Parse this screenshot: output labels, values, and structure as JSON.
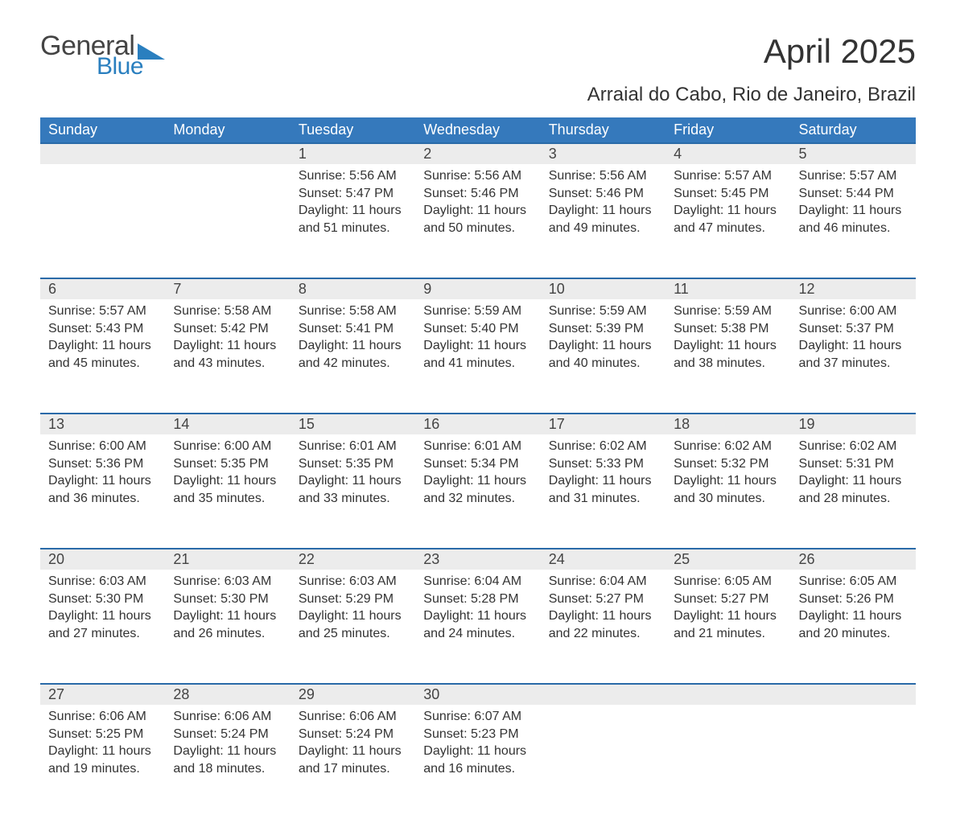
{
  "brand": {
    "line1": "General",
    "line2": "Blue",
    "triangle_color": "#2a7fbf",
    "text1_color": "#444444",
    "text2_color": "#2a7fbf"
  },
  "title": "April 2025",
  "subtitle": "Arraial do Cabo, Rio de Janeiro, Brazil",
  "colors": {
    "header_bg": "#3579bc",
    "header_text": "#ffffff",
    "daynum_bg": "#ececec",
    "row_border": "#2a6aa8",
    "body_text": "#333333",
    "page_bg": "#ffffff"
  },
  "fonts": {
    "title_size": 42,
    "subtitle_size": 24,
    "header_size": 18,
    "daynum_size": 18,
    "cell_size": 16
  },
  "weekdays": [
    "Sunday",
    "Monday",
    "Tuesday",
    "Wednesday",
    "Thursday",
    "Friday",
    "Saturday"
  ],
  "weeks": [
    [
      null,
      null,
      {
        "n": "1",
        "sunrise": "5:56 AM",
        "sunset": "5:47 PM",
        "daylight": "11 hours and 51 minutes."
      },
      {
        "n": "2",
        "sunrise": "5:56 AM",
        "sunset": "5:46 PM",
        "daylight": "11 hours and 50 minutes."
      },
      {
        "n": "3",
        "sunrise": "5:56 AM",
        "sunset": "5:46 PM",
        "daylight": "11 hours and 49 minutes."
      },
      {
        "n": "4",
        "sunrise": "5:57 AM",
        "sunset": "5:45 PM",
        "daylight": "11 hours and 47 minutes."
      },
      {
        "n": "5",
        "sunrise": "5:57 AM",
        "sunset": "5:44 PM",
        "daylight": "11 hours and 46 minutes."
      }
    ],
    [
      {
        "n": "6",
        "sunrise": "5:57 AM",
        "sunset": "5:43 PM",
        "daylight": "11 hours and 45 minutes."
      },
      {
        "n": "7",
        "sunrise": "5:58 AM",
        "sunset": "5:42 PM",
        "daylight": "11 hours and 43 minutes."
      },
      {
        "n": "8",
        "sunrise": "5:58 AM",
        "sunset": "5:41 PM",
        "daylight": "11 hours and 42 minutes."
      },
      {
        "n": "9",
        "sunrise": "5:59 AM",
        "sunset": "5:40 PM",
        "daylight": "11 hours and 41 minutes."
      },
      {
        "n": "10",
        "sunrise": "5:59 AM",
        "sunset": "5:39 PM",
        "daylight": "11 hours and 40 minutes."
      },
      {
        "n": "11",
        "sunrise": "5:59 AM",
        "sunset": "5:38 PM",
        "daylight": "11 hours and 38 minutes."
      },
      {
        "n": "12",
        "sunrise": "6:00 AM",
        "sunset": "5:37 PM",
        "daylight": "11 hours and 37 minutes."
      }
    ],
    [
      {
        "n": "13",
        "sunrise": "6:00 AM",
        "sunset": "5:36 PM",
        "daylight": "11 hours and 36 minutes."
      },
      {
        "n": "14",
        "sunrise": "6:00 AM",
        "sunset": "5:35 PM",
        "daylight": "11 hours and 35 minutes."
      },
      {
        "n": "15",
        "sunrise": "6:01 AM",
        "sunset": "5:35 PM",
        "daylight": "11 hours and 33 minutes."
      },
      {
        "n": "16",
        "sunrise": "6:01 AM",
        "sunset": "5:34 PM",
        "daylight": "11 hours and 32 minutes."
      },
      {
        "n": "17",
        "sunrise": "6:02 AM",
        "sunset": "5:33 PM",
        "daylight": "11 hours and 31 minutes."
      },
      {
        "n": "18",
        "sunrise": "6:02 AM",
        "sunset": "5:32 PM",
        "daylight": "11 hours and 30 minutes."
      },
      {
        "n": "19",
        "sunrise": "6:02 AM",
        "sunset": "5:31 PM",
        "daylight": "11 hours and 28 minutes."
      }
    ],
    [
      {
        "n": "20",
        "sunrise": "6:03 AM",
        "sunset": "5:30 PM",
        "daylight": "11 hours and 27 minutes."
      },
      {
        "n": "21",
        "sunrise": "6:03 AM",
        "sunset": "5:30 PM",
        "daylight": "11 hours and 26 minutes."
      },
      {
        "n": "22",
        "sunrise": "6:03 AM",
        "sunset": "5:29 PM",
        "daylight": "11 hours and 25 minutes."
      },
      {
        "n": "23",
        "sunrise": "6:04 AM",
        "sunset": "5:28 PM",
        "daylight": "11 hours and 24 minutes."
      },
      {
        "n": "24",
        "sunrise": "6:04 AM",
        "sunset": "5:27 PM",
        "daylight": "11 hours and 22 minutes."
      },
      {
        "n": "25",
        "sunrise": "6:05 AM",
        "sunset": "5:27 PM",
        "daylight": "11 hours and 21 minutes."
      },
      {
        "n": "26",
        "sunrise": "6:05 AM",
        "sunset": "5:26 PM",
        "daylight": "11 hours and 20 minutes."
      }
    ],
    [
      {
        "n": "27",
        "sunrise": "6:06 AM",
        "sunset": "5:25 PM",
        "daylight": "11 hours and 19 minutes."
      },
      {
        "n": "28",
        "sunrise": "6:06 AM",
        "sunset": "5:24 PM",
        "daylight": "11 hours and 18 minutes."
      },
      {
        "n": "29",
        "sunrise": "6:06 AM",
        "sunset": "5:24 PM",
        "daylight": "11 hours and 17 minutes."
      },
      {
        "n": "30",
        "sunrise": "6:07 AM",
        "sunset": "5:23 PM",
        "daylight": "11 hours and 16 minutes."
      },
      null,
      null,
      null
    ]
  ],
  "labels": {
    "sunrise": "Sunrise: ",
    "sunset": "Sunset: ",
    "daylight": "Daylight: "
  }
}
